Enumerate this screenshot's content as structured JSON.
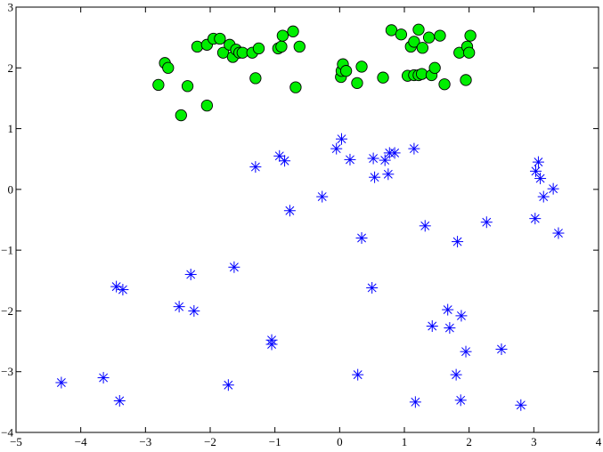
{
  "chart_data": {
    "type": "scatter",
    "title": "",
    "xlabel": "",
    "ylabel": "",
    "xlim": [
      -5,
      4
    ],
    "ylim": [
      -4,
      3
    ],
    "x_ticks": [
      -5,
      -4,
      -3,
      -2,
      -1,
      0,
      1,
      2,
      3,
      4
    ],
    "y_ticks": [
      -4,
      -3,
      -2,
      -1,
      0,
      1,
      2,
      3
    ],
    "x_tick_labels": [
      "−5",
      "−4",
      "−3",
      "−2",
      "−1",
      "0",
      "1",
      "2",
      "3",
      "4"
    ],
    "y_tick_labels": [
      "−4",
      "−3",
      "−2",
      "−1",
      "0",
      "1",
      "2",
      "3"
    ],
    "grid": false,
    "legend": "none",
    "series": [
      {
        "marker": "circle",
        "color": "#00ee00",
        "edge_color": "#000000",
        "points": [
          [
            -2.8,
            1.72
          ],
          [
            -2.7,
            2.08
          ],
          [
            -2.65,
            2.0
          ],
          [
            -2.45,
            1.22
          ],
          [
            -2.35,
            1.7
          ],
          [
            -2.2,
            2.35
          ],
          [
            -2.05,
            2.38
          ],
          [
            -2.05,
            1.38
          ],
          [
            -1.95,
            2.48
          ],
          [
            -1.85,
            2.48
          ],
          [
            -1.8,
            2.25
          ],
          [
            -1.7,
            2.38
          ],
          [
            -1.65,
            2.18
          ],
          [
            -1.6,
            2.3
          ],
          [
            -1.55,
            2.25
          ],
          [
            -1.5,
            2.25
          ],
          [
            -1.35,
            2.25
          ],
          [
            -1.3,
            1.83
          ],
          [
            -1.25,
            2.32
          ],
          [
            -0.95,
            2.32
          ],
          [
            -0.9,
            2.35
          ],
          [
            -0.88,
            2.53
          ],
          [
            -0.72,
            2.6
          ],
          [
            -0.68,
            1.68
          ],
          [
            -0.62,
            2.35
          ],
          [
            0.02,
            1.85
          ],
          [
            0.03,
            1.95
          ],
          [
            0.05,
            2.06
          ],
          [
            0.1,
            1.95
          ],
          [
            0.27,
            1.75
          ],
          [
            0.34,
            2.02
          ],
          [
            0.67,
            1.84
          ],
          [
            0.8,
            2.62
          ],
          [
            0.95,
            2.55
          ],
          [
            1.05,
            1.87
          ],
          [
            1.1,
            2.35
          ],
          [
            1.15,
            2.43
          ],
          [
            1.15,
            1.88
          ],
          [
            1.22,
            1.88
          ],
          [
            1.22,
            2.63
          ],
          [
            1.27,
            1.9
          ],
          [
            1.28,
            2.33
          ],
          [
            1.38,
            2.5
          ],
          [
            1.42,
            1.88
          ],
          [
            1.47,
            2.0
          ],
          [
            1.55,
            2.53
          ],
          [
            1.62,
            1.73
          ],
          [
            1.85,
            2.25
          ],
          [
            1.95,
            1.8
          ],
          [
            1.97,
            2.35
          ],
          [
            2.0,
            2.25
          ],
          [
            2.02,
            2.53
          ]
        ]
      },
      {
        "marker": "asterisk",
        "color": "#0000ff",
        "points": [
          [
            -4.3,
            -3.18
          ],
          [
            -3.65,
            -3.1
          ],
          [
            -3.45,
            -1.6
          ],
          [
            -3.4,
            -3.48
          ],
          [
            -3.35,
            -1.65
          ],
          [
            -2.48,
            -1.93
          ],
          [
            -2.3,
            -1.4
          ],
          [
            -2.25,
            -2.0
          ],
          [
            -1.72,
            -3.22
          ],
          [
            -1.63,
            -1.28
          ],
          [
            -1.3,
            0.37
          ],
          [
            -1.05,
            -2.48
          ],
          [
            -1.05,
            -2.55
          ],
          [
            -0.93,
            0.55
          ],
          [
            -0.85,
            0.47
          ],
          [
            -0.77,
            -0.35
          ],
          [
            -0.27,
            -0.12
          ],
          [
            -0.05,
            0.67
          ],
          [
            0.03,
            0.83
          ],
          [
            0.16,
            0.49
          ],
          [
            0.28,
            -3.05
          ],
          [
            0.34,
            -0.8
          ],
          [
            0.5,
            -1.62
          ],
          [
            0.52,
            0.51
          ],
          [
            0.54,
            0.2
          ],
          [
            0.7,
            0.48
          ],
          [
            0.75,
            0.25
          ],
          [
            0.77,
            0.6
          ],
          [
            0.85,
            0.6
          ],
          [
            1.15,
            0.67
          ],
          [
            1.17,
            -3.5
          ],
          [
            1.32,
            -0.6
          ],
          [
            1.43,
            -2.25
          ],
          [
            1.67,
            -1.98
          ],
          [
            1.7,
            -2.28
          ],
          [
            1.8,
            -3.05
          ],
          [
            1.82,
            -0.86
          ],
          [
            1.87,
            -3.47
          ],
          [
            1.88,
            -2.08
          ],
          [
            1.95,
            -2.67
          ],
          [
            2.27,
            -0.54
          ],
          [
            2.5,
            -2.63
          ],
          [
            2.8,
            -3.55
          ],
          [
            3.02,
            -0.48
          ],
          [
            3.03,
            0.3
          ],
          [
            3.07,
            0.45
          ],
          [
            3.1,
            0.18
          ],
          [
            3.15,
            -0.12
          ],
          [
            3.3,
            0.01
          ],
          [
            3.38,
            -0.72
          ]
        ]
      }
    ]
  }
}
